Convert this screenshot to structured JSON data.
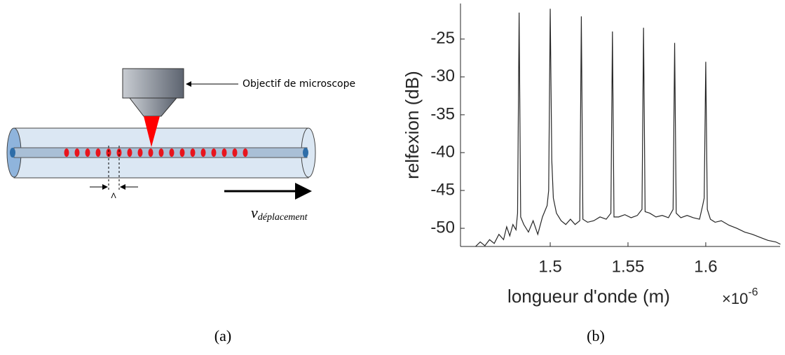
{
  "diagram": {
    "objective_label": "Objectif de microscope",
    "period_label": "Λ",
    "velocity_label": {
      "symbol": "v",
      "subscript": "déplacement"
    },
    "caption": "(a)"
  },
  "chart_data": {
    "type": "line",
    "caption": "(b)",
    "ylabel": "relfexion (dB)",
    "xlabel": "longueur d'onde (m)",
    "x_multiplier": {
      "base": "×10",
      "exponent": "-6"
    },
    "xlim": [
      1.4423,
      1.6478
    ],
    "ylim": [
      -52.4,
      -20.3
    ],
    "xticks": [
      1.5,
      1.55,
      1.6
    ],
    "yticks": [
      -25,
      -30,
      -35,
      -40,
      -45,
      -50
    ],
    "series": [
      {
        "color": "#262626",
        "x": [
          1.452,
          1.455,
          1.458,
          1.461,
          1.464,
          1.467,
          1.47,
          1.472,
          1.474,
          1.476,
          1.478,
          1.479,
          1.48,
          1.481,
          1.483,
          1.486,
          1.489,
          1.492,
          1.495,
          1.498,
          1.499,
          1.5,
          1.501,
          1.502,
          1.504,
          1.507,
          1.51,
          1.513,
          1.516,
          1.519,
          1.52,
          1.521,
          1.524,
          1.528,
          1.532,
          1.536,
          1.539,
          1.54,
          1.541,
          1.544,
          1.548,
          1.552,
          1.556,
          1.559,
          1.56,
          1.561,
          1.564,
          1.568,
          1.572,
          1.576,
          1.579,
          1.58,
          1.581,
          1.584,
          1.588,
          1.592,
          1.596,
          1.598,
          1.599,
          1.6,
          1.601,
          1.603,
          1.606,
          1.61,
          1.615,
          1.62,
          1.625,
          1.63,
          1.635,
          1.64,
          1.645,
          1.648
        ],
        "values": [
          -52.4,
          -51.8,
          -52.3,
          -51.5,
          -52,
          -50.8,
          -51.5,
          -49.8,
          -51,
          -49.5,
          -50.2,
          -48,
          -21.5,
          -48.5,
          -49.5,
          -50.5,
          -49,
          -50.8,
          -48.5,
          -47,
          -45,
          -21,
          -41,
          -46,
          -48,
          -49,
          -49.5,
          -48.8,
          -49.5,
          -49,
          -22,
          -48.8,
          -49.2,
          -49,
          -48.5,
          -48.8,
          -48,
          -24,
          -48.5,
          -48.5,
          -48.2,
          -48.6,
          -48.3,
          -47.5,
          -23.5,
          -47.8,
          -48,
          -48.5,
          -48.3,
          -48.6,
          -47.5,
          -25.5,
          -48,
          -48.6,
          -48.3,
          -48.6,
          -48.8,
          -47,
          -46,
          -28,
          -47.5,
          -48.8,
          -49.2,
          -49,
          -49.6,
          -50,
          -50.5,
          -50.8,
          -51.2,
          -51.6,
          -51.8,
          -52.1
        ]
      }
    ]
  }
}
